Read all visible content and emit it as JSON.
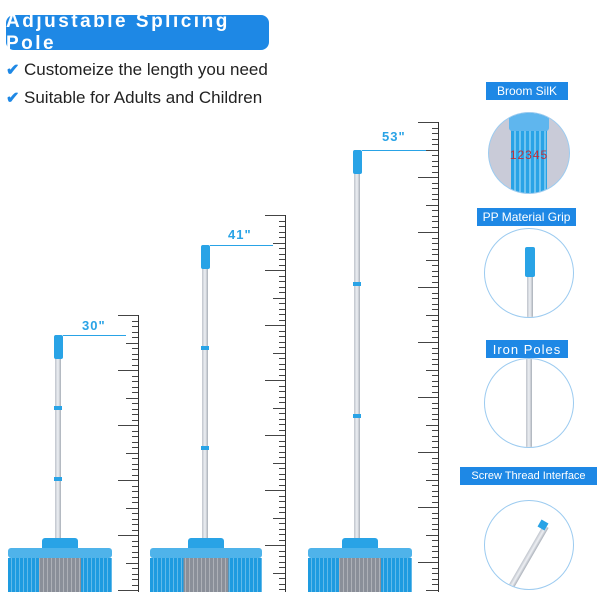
{
  "title": "Adjustable Splicing Pole",
  "features": [
    "Customeize the length you need",
    "Suitable for Adults and Children"
  ],
  "brooms": [
    {
      "length": "30\""
    },
    {
      "length": "41\""
    },
    {
      "length": "53\""
    }
  ],
  "details": [
    {
      "label": "Broom SilK",
      "numbers": "12345"
    },
    {
      "label": "PP Material Grip"
    },
    {
      "label": "Iron Poles"
    },
    {
      "label": "Screw Thread Interface"
    }
  ],
  "colors": {
    "accent": "#1e88e5",
    "bristle": "#29a3e6",
    "bristle_center": "#8a8f99"
  }
}
